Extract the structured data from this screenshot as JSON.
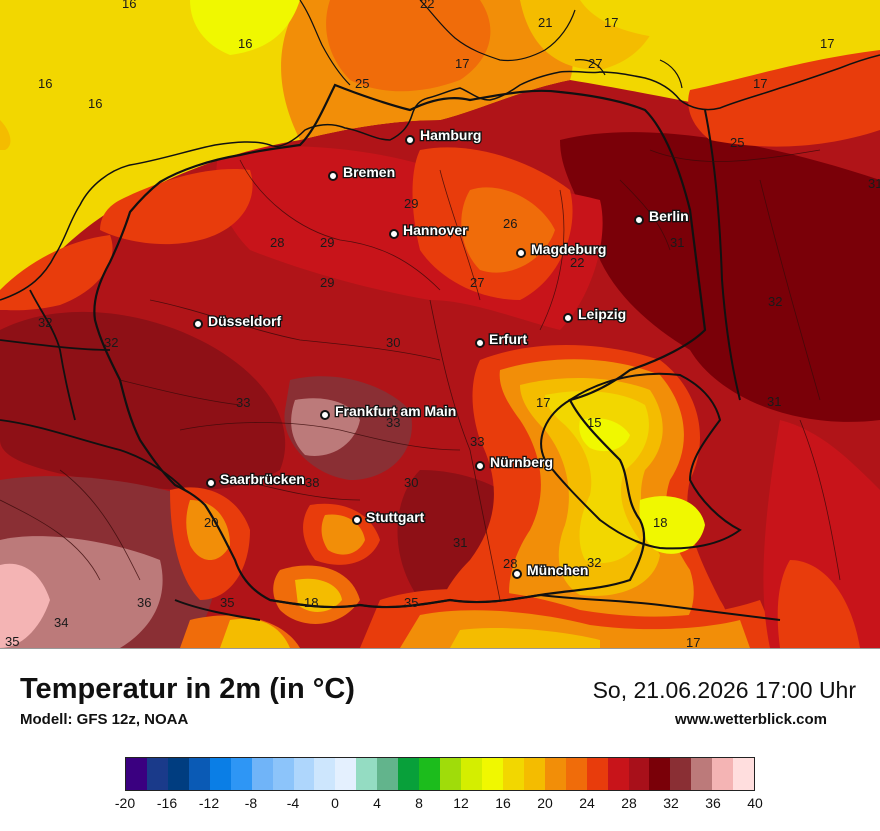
{
  "title": "Temperatur in 2m (in °C)",
  "model": "Modell: GFS 12z, NOAA",
  "datetime": "So, 21.06.2026 17:00 Uhr",
  "website": "www.wetterblick.com",
  "cities": [
    {
      "name": "Hamburg"
    },
    {
      "name": "Bremen"
    },
    {
      "name": "Berlin"
    },
    {
      "name": "Hannover"
    },
    {
      "name": "Magdeburg"
    },
    {
      "name": "Leipzig"
    },
    {
      "name": "Düsseldorf"
    },
    {
      "name": "Erfurt"
    },
    {
      "name": "Frankfurt am Main"
    },
    {
      "name": "Nürnberg"
    },
    {
      "name": "Saarbrücken"
    },
    {
      "name": "Stuttgart"
    },
    {
      "name": "München"
    }
  ],
  "map_values": [
    "16",
    "22",
    "21",
    "17",
    "16",
    "17",
    "16",
    "16",
    "25",
    "17",
    "17",
    "29",
    "26",
    "28",
    "22",
    "31",
    "31",
    "29",
    "27",
    "32",
    "32",
    "30",
    "32",
    "33",
    "17",
    "33",
    "15",
    "31",
    "33",
    "38",
    "30",
    "20",
    "31",
    "18",
    "32",
    "36",
    "35",
    "18",
    "35",
    "34",
    "17",
    "35",
    "29",
    "28",
    "25",
    "27"
  ],
  "legend": {
    "colors": [
      "#3a0080",
      "#1a3a8a",
      "#003d80",
      "#0a5ab5",
      "#0a7ee6",
      "#2e96f5",
      "#70b4f8",
      "#8cc4fa",
      "#aed6fc",
      "#cde6fd",
      "#e4f0fe",
      "#94dcc2",
      "#62b48c",
      "#08a03a",
      "#1cbc1c",
      "#a0dc0a",
      "#d4ee00",
      "#f0f800",
      "#f2d700",
      "#f4bc00",
      "#f28e08",
      "#f06c0a",
      "#e83c0c",
      "#c8141a",
      "#a8101a",
      "#7a0008",
      "#8a2f34",
      "#bc7a7a",
      "#f4b4b4",
      "#ffdede"
    ],
    "ticks": [
      "-20",
      "-16",
      "-12",
      "-8",
      "-4",
      "0",
      "4",
      "8",
      "12",
      "16",
      "20",
      "24",
      "28",
      "32",
      "36",
      "40"
    ]
  }
}
